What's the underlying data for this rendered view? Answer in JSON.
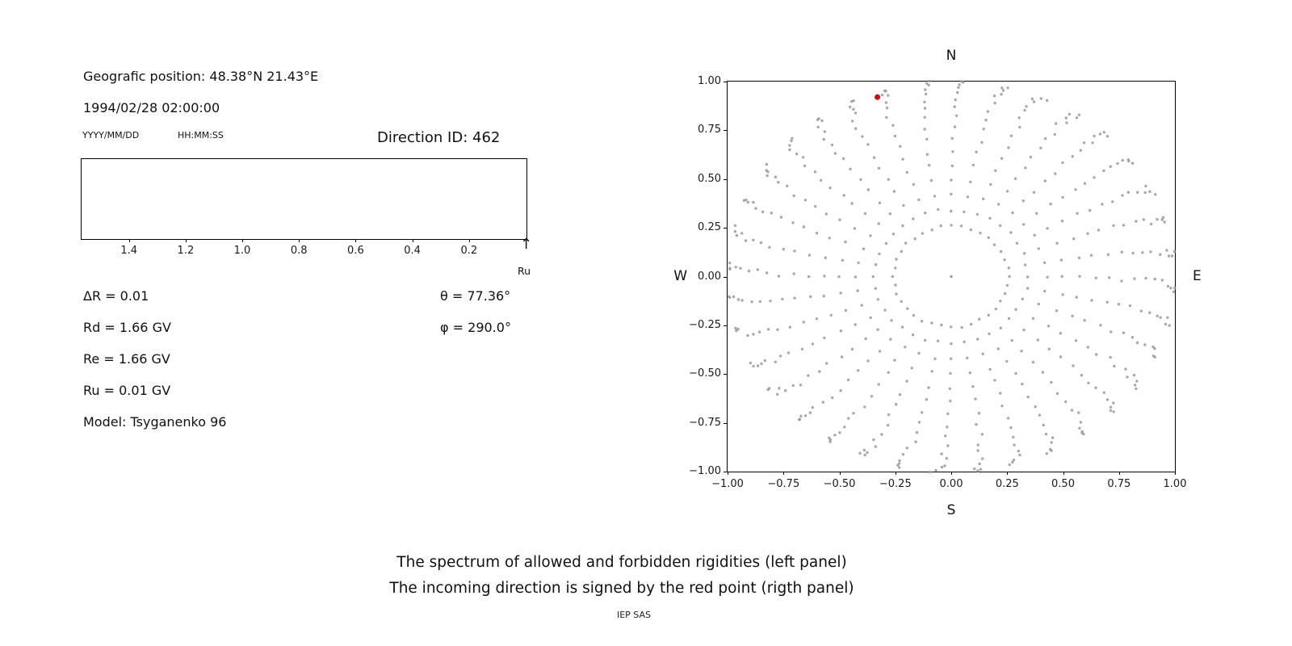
{
  "left_panel": {
    "geo_position": "Geografic position: 48.38°N 21.43°E",
    "datetime": "1994/02/28 02:00:00",
    "date_format_label": "YYYY/MM/DD",
    "time_format_label": "HH:MM:SS",
    "direction_id_label": "Direction ID: 462",
    "params": [
      "ΔR = 0.01",
      "Rd = 1.66 GV",
      "Re = 1.66 GV",
      "Ru = 0.01 GV",
      "Model: Tsyganenko 96"
    ],
    "theta": "θ = 77.36°",
    "phi": "φ = 290.0°"
  },
  "chart_data": [
    {
      "id": "rigidity_spectrum",
      "type": "line",
      "title": "",
      "series": [],
      "x_axis_reversed": true,
      "xlim": [
        1.57,
        0.0
      ],
      "x_tick_values": [
        1.4,
        1.2,
        1.0,
        0.8,
        0.6,
        0.4,
        0.2
      ],
      "x_tick_labels": [
        "1.4",
        "1.2",
        "1.0",
        "0.8",
        "0.6",
        "0.4",
        "0.2"
      ],
      "arrow_glyph": "↑",
      "arrow_label": "Ru"
    },
    {
      "id": "incoming_direction",
      "type": "scatter",
      "title": "",
      "compass": {
        "top": "N",
        "bottom": "S",
        "left": "W",
        "right": "E"
      },
      "xlim": [
        -1,
        1
      ],
      "ylim": [
        -1,
        1
      ],
      "x_tick_values": [
        -1.0,
        -0.75,
        -0.5,
        -0.25,
        0.0,
        0.25,
        0.5,
        0.75,
        1.0
      ],
      "x_tick_labels": [
        "−1.00",
        "−0.75",
        "−0.50",
        "−0.25",
        "0.00",
        "0.25",
        "0.50",
        "0.75",
        "1.00"
      ],
      "y_tick_values": [
        1.0,
        0.75,
        0.5,
        0.25,
        0.0,
        -0.25,
        -0.5,
        -0.75,
        -1.0
      ],
      "y_tick_labels": [
        "1.00",
        "0.75",
        "0.50",
        "0.25",
        "0.00",
        "−0.25",
        "−0.50",
        "−0.75",
        "−1.00"
      ],
      "direction_grid": {
        "description": "gray dots on azimuth x zenith grid, radius = sin(zenith)",
        "azimuth_start": 0,
        "azimuth_step": 10,
        "azimuth_count": 36,
        "zenith_start": 15,
        "zenith_step": 5,
        "zenith_end": 90,
        "twist_deg": 4,
        "jitter_az_deg": 3,
        "jitter_radius": 0.015,
        "color": "#999999",
        "center_point": [
          0,
          0
        ]
      },
      "red_point": {
        "x": -0.33,
        "y": 0.92,
        "color": "#e00000"
      }
    }
  ],
  "captions": {
    "line1": "The spectrum of allowed and forbidden rigidities (left panel)",
    "line2": "The incoming direction is signed by the red point (rigth panel)",
    "footer": "IEP SAS"
  }
}
